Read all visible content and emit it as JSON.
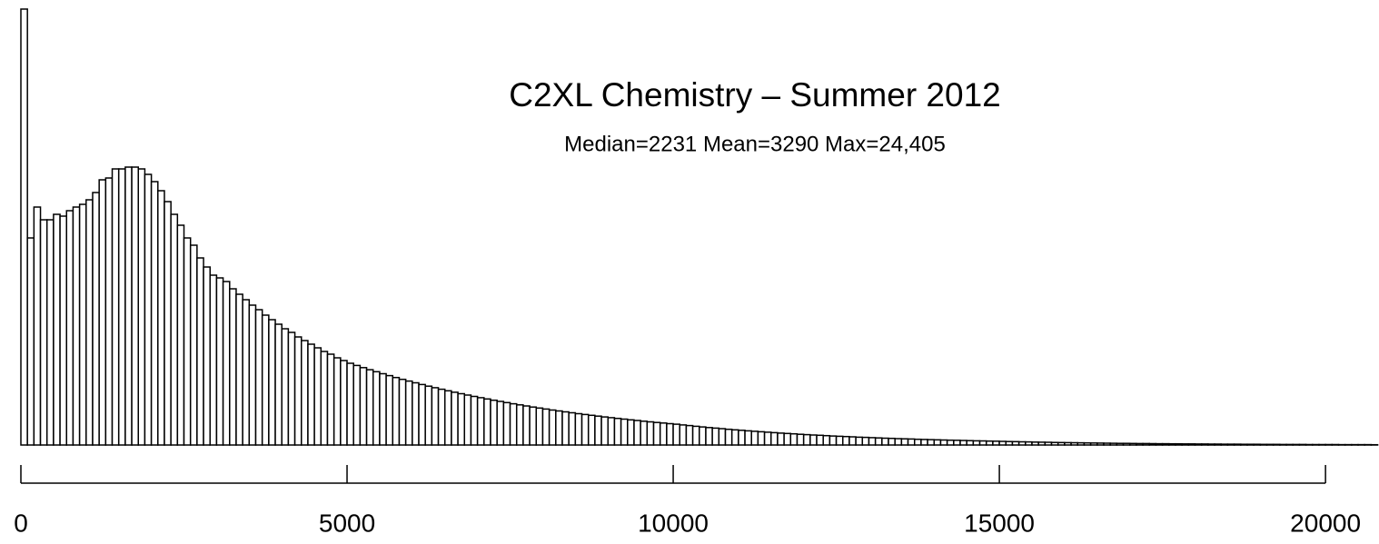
{
  "chart_data": {
    "type": "histogram",
    "title": "C2XL Chemistry – Summer 2012",
    "subtitle": "Median=2231 Mean=3290 Max=24,405",
    "color": "#ffffff",
    "xlim": [
      0,
      20820
    ],
    "ylim": [
      0,
      480
    ],
    "xticks": [
      0,
      5000,
      10000,
      15000,
      20000
    ],
    "bins": [
      0,
      100,
      200,
      300,
      400,
      500,
      600,
      700,
      800,
      900,
      1000,
      1100,
      1200,
      1300,
      1400,
      1500,
      1600,
      1700,
      1800,
      1900,
      2000,
      2100,
      2200,
      2300,
      2400,
      2500,
      2600,
      2700,
      2800,
      2900,
      3000,
      3100,
      3200,
      3300,
      3400,
      3500,
      3600,
      3700,
      3800,
      3900,
      4000,
      4100,
      4200,
      4300,
      4400,
      4500,
      4600,
      4700,
      4800,
      4900,
      5000,
      5100,
      5200,
      5300,
      5400,
      5500,
      5600,
      5700,
      5800,
      5900,
      6000,
      6100,
      6200,
      6300,
      6400,
      6500,
      6600,
      6700,
      6800,
      6900,
      7000,
      7100,
      7200,
      7300,
      7400,
      7500,
      7600,
      7700,
      7800,
      7900,
      8000,
      8100,
      8200,
      8300,
      8400,
      8500,
      8600,
      8700,
      8800,
      8900,
      9000,
      9100,
      9200,
      9300,
      9400,
      9500,
      9600,
      9700,
      9800,
      9900,
      10000,
      10100,
      10200,
      10300,
      10400,
      10500,
      10600,
      10700,
      10800,
      10900,
      11000,
      11100,
      11200,
      11300,
      11400,
      11500,
      11600,
      11700,
      11800,
      11900,
      12000,
      12100,
      12200,
      12300,
      12400,
      12500,
      12600,
      12700,
      12800,
      12900,
      13000,
      13100,
      13200,
      13300,
      13400,
      13500,
      13600,
      13700,
      13800,
      13900,
      14000,
      14100,
      14200,
      14300,
      14400,
      14500,
      14600,
      14700,
      14800,
      14900,
      15000,
      15100,
      15200,
      15300,
      15400,
      15500,
      15600,
      15700,
      15800,
      15900,
      16000,
      16100,
      16200,
      16300,
      16400,
      16500,
      16600,
      16700,
      16800,
      16900,
      17000,
      17100,
      17200,
      17300,
      17400,
      17500,
      17600,
      17700,
      17800,
      17900,
      18000,
      18100,
      18200,
      18300,
      18400,
      18500,
      18600,
      18700,
      18800,
      18900,
      19000,
      19100,
      19200,
      19300,
      19400,
      19500,
      19600,
      19700,
      19800,
      19900,
      20000,
      20100,
      20200,
      20300,
      20400,
      20500,
      20600,
      20700,
      20800
    ],
    "counts": [
      480,
      228,
      262,
      248,
      248,
      254,
      252,
      258,
      262,
      265,
      270,
      278,
      292,
      294,
      304,
      304,
      306,
      306,
      304,
      298,
      290,
      280,
      268,
      254,
      242,
      228,
      220,
      206,
      196,
      187,
      184,
      180,
      172,
      166,
      160,
      154,
      149,
      143,
      138,
      133,
      128,
      124,
      119,
      115,
      111,
      107,
      103,
      100,
      96,
      93,
      90,
      87.6,
      85.2,
      82.9,
      80.7,
      78.5,
      76.4,
      74.3,
      72.3,
      70.4,
      68.5,
      66.6,
      64.8,
      63.1,
      61.4,
      59.7,
      58.1,
      56.5,
      55.0,
      53.5,
      52.1,
      50.7,
      49.3,
      48.0,
      46.7,
      45.4,
      44.2,
      43.0,
      41.8,
      40.7,
      39.6,
      38.5,
      37.5,
      36.5,
      35.5,
      34.5,
      33.6,
      32.7,
      31.8,
      30.9,
      30.1,
      29.3,
      28.5,
      27.7,
      27.0,
      26.2,
      25.5,
      24.8,
      24.2,
      23.5,
      22.9,
      22.1,
      21.4,
      20.6,
      19.9,
      19.2,
      18.6,
      18.0,
      17.3,
      16.7,
      16.2,
      15.6,
      15.1,
      14.6,
      14.1,
      13.6,
      13.1,
      12.7,
      12.3,
      11.8,
      11.4,
      11.0,
      10.7,
      10.3,
      9.9,
      9.6,
      9.3,
      9.0,
      8.6,
      8.4,
      8.1,
      7.8,
      7.5,
      7.3,
      7.0,
      6.8,
      6.6,
      6.3,
      6.1,
      5.9,
      5.7,
      5.5,
      5.3,
      5.2,
      5.0,
      4.8,
      4.6,
      4.5,
      4.3,
      4.2,
      4.0,
      3.8,
      3.7,
      3.5,
      3.4,
      3.2,
      3.1,
      3.0,
      2.8,
      2.7,
      2.6,
      2.5,
      2.4,
      2.3,
      2.2,
      2.1,
      2.0,
      1.9,
      1.8,
      1.8,
      1.7,
      1.6,
      1.6,
      1.5,
      1.4,
      1.4,
      1.3,
      1.3,
      1.2,
      1.2,
      1.1,
      1.1,
      1.0,
      1.0,
      0.9,
      0.9,
      0.9,
      0.8,
      0.8,
      0.8,
      0.7,
      0.7,
      0.7,
      0.6,
      0.6,
      0.6,
      0.6,
      0.5,
      0.5,
      0.5,
      0.5,
      0.5,
      0.4,
      0.4,
      0.4,
      0.4,
      0.4,
      0.3
    ]
  }
}
